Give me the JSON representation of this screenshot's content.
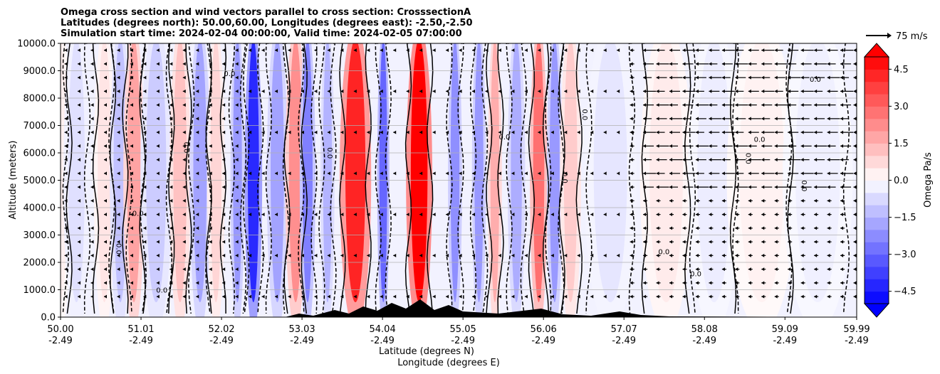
{
  "chart_data": {
    "type": "heatmap",
    "title_lines": [
      "Omega cross section and wind vectors parallel to cross section: CrosssectionA",
      "Latitudes (degrees north): 50.00,60.00, Longitudes (degrees east): -2.50,-2.50",
      "Simulation start time: 2024-02-04 00:00:00, Valid time: 2024-02-05 07:00:00"
    ],
    "ylabel": "Altitude (meters)",
    "xlabel_lines": [
      "Latitude (degrees N)",
      "Longitude (degrees E)"
    ],
    "ylim": [
      0,
      10000
    ],
    "xlim": [
      50.0,
      59.99
    ],
    "y_ticks": [
      {
        "value": 0,
        "label": "0.0"
      },
      {
        "value": 1000,
        "label": "1000.0"
      },
      {
        "value": 2000,
        "label": "2000.0"
      },
      {
        "value": 3000,
        "label": "3000.0"
      },
      {
        "value": 4000,
        "label": "4000.0"
      },
      {
        "value": 5000,
        "label": "5000.0"
      },
      {
        "value": 6000,
        "label": "6000.0"
      },
      {
        "value": 7000,
        "label": "7000.0"
      },
      {
        "value": 8000,
        "label": "8000.0"
      },
      {
        "value": 9000,
        "label": "9000.0"
      },
      {
        "value": 10000,
        "label": "10000.0"
      }
    ],
    "x_ticks": [
      {
        "value": 50.0,
        "lat": "50.00",
        "lon": "-2.49"
      },
      {
        "value": 51.01,
        "lat": "51.01",
        "lon": "-2.49"
      },
      {
        "value": 52.02,
        "lat": "52.02",
        "lon": "-2.49"
      },
      {
        "value": 53.03,
        "lat": "53.03",
        "lon": "-2.49"
      },
      {
        "value": 54.04,
        "lat": "54.04",
        "lon": "-2.49"
      },
      {
        "value": 55.05,
        "lat": "55.05",
        "lon": "-2.49"
      },
      {
        "value": 56.06,
        "lat": "56.06",
        "lon": "-2.49"
      },
      {
        "value": 57.07,
        "lat": "57.07",
        "lon": "-2.49"
      },
      {
        "value": 58.08,
        "lat": "58.08",
        "lon": "-2.49"
      },
      {
        "value": 59.09,
        "lat": "59.09",
        "lon": "-2.49"
      },
      {
        "value": 59.99,
        "lat": "59.99",
        "lon": "-2.49"
      }
    ],
    "grid": "horizontal",
    "colorbar": {
      "label": "Omega Pa/s",
      "range": [
        -5.0,
        5.0
      ],
      "extend": "both",
      "ticks": [
        {
          "value": 4.5,
          "label": "4.5"
        },
        {
          "value": 3.0,
          "label": "3.0"
        },
        {
          "value": 1.5,
          "label": "1.5"
        },
        {
          "value": 0.0,
          "label": "0.0"
        },
        {
          "value": -1.5,
          "label": "−1.5"
        },
        {
          "value": -3.0,
          "label": "−3.0"
        },
        {
          "value": -4.5,
          "label": "−4.5"
        }
      ],
      "levels": 20,
      "colormap": "bwr"
    },
    "quiver_key": {
      "label": "75 m/s"
    },
    "omega_bands": [
      {
        "x": 50.0,
        "w": 0.12,
        "v": 0.3
      },
      {
        "x": 50.2,
        "w": 0.15,
        "v": -0.6
      },
      {
        "x": 50.55,
        "w": 0.12,
        "v": 0.5
      },
      {
        "x": 50.75,
        "w": 0.12,
        "v": -1.2
      },
      {
        "x": 50.92,
        "w": 0.12,
        "v": 1.8
      },
      {
        "x": 51.2,
        "w": 0.18,
        "v": -1.0
      },
      {
        "x": 51.5,
        "w": 0.12,
        "v": 1.2
      },
      {
        "x": 51.75,
        "w": 0.12,
        "v": -1.8
      },
      {
        "x": 51.95,
        "w": 0.1,
        "v": 0.8
      },
      {
        "x": 52.22,
        "w": 0.08,
        "v": -2.0
      },
      {
        "x": 52.42,
        "w": 0.1,
        "v": -4.2
      },
      {
        "x": 52.72,
        "w": 0.12,
        "v": -1.8
      },
      {
        "x": 52.95,
        "w": 0.12,
        "v": 2.2
      },
      {
        "x": 53.1,
        "w": 0.09,
        "v": -2.5
      },
      {
        "x": 53.35,
        "w": 0.08,
        "v": -1.5
      },
      {
        "x": 53.7,
        "w": 0.18,
        "v": 4.3
      },
      {
        "x": 54.05,
        "w": 0.07,
        "v": -3.0
      },
      {
        "x": 54.5,
        "w": 0.15,
        "v": 5.0
      },
      {
        "x": 54.95,
        "w": 0.08,
        "v": -2.2
      },
      {
        "x": 55.25,
        "w": 0.08,
        "v": -2.0
      },
      {
        "x": 55.45,
        "w": 0.08,
        "v": 1.6
      },
      {
        "x": 55.72,
        "w": 0.1,
        "v": -1.6
      },
      {
        "x": 56.0,
        "w": 0.1,
        "v": 2.8
      },
      {
        "x": 56.2,
        "w": 0.09,
        "v": -2.0
      },
      {
        "x": 56.4,
        "w": 0.12,
        "v": 1.0
      },
      {
        "x": 56.9,
        "w": 0.3,
        "v": -0.5
      },
      {
        "x": 57.6,
        "w": 0.3,
        "v": 0.4
      },
      {
        "x": 58.2,
        "w": 0.3,
        "v": -0.35
      },
      {
        "x": 58.8,
        "w": 0.4,
        "v": 0.25
      },
      {
        "x": 59.5,
        "w": 0.4,
        "v": -0.3
      }
    ],
    "contour_label": "0.0"
  }
}
